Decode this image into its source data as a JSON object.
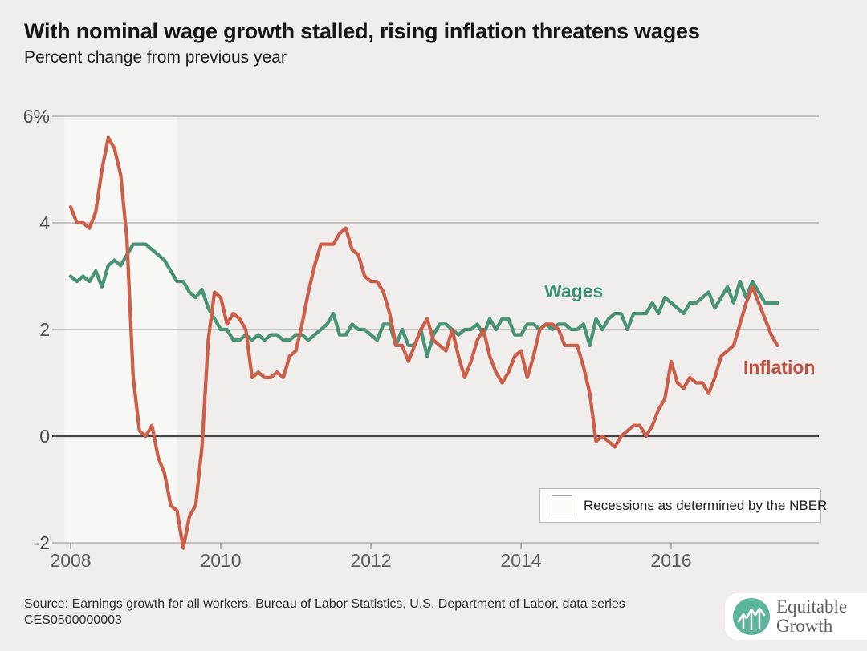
{
  "header": {
    "title": "With nominal wage growth stalled, rising inflation threatens wages",
    "subtitle": "Percent change from previous year"
  },
  "chart_data": {
    "type": "line",
    "x_unit": "month",
    "x_start": "2008-01",
    "x_end": "2017-06",
    "x_tick_years": [
      2008,
      2010,
      2012,
      2014,
      2016
    ],
    "y_ticks": [
      6,
      4,
      2,
      0,
      -2
    ],
    "y_tick_labels": [
      "6%",
      "4",
      "2",
      "0",
      "-2"
    ],
    "ylim": [
      -2.2,
      6.2
    ],
    "grid": "horizontal",
    "recession_band": {
      "start": "2007-12",
      "end": "2009-06",
      "color": "#f7f7f6"
    },
    "series": [
      {
        "name": "Wages",
        "color": "#4a9475",
        "values": [
          3.0,
          2.9,
          3.0,
          2.9,
          3.1,
          2.8,
          3.2,
          3.3,
          3.2,
          3.4,
          3.6,
          3.6,
          3.6,
          3.5,
          3.4,
          3.3,
          3.1,
          2.9,
          2.9,
          2.7,
          2.6,
          2.75,
          2.4,
          2.2,
          2.0,
          2.0,
          1.8,
          1.8,
          1.9,
          1.8,
          1.9,
          1.8,
          1.9,
          1.9,
          1.8,
          1.8,
          1.9,
          1.9,
          1.8,
          1.9,
          2.0,
          2.1,
          2.3,
          1.9,
          1.9,
          2.1,
          2.0,
          2.0,
          1.9,
          1.8,
          2.1,
          2.1,
          1.7,
          2.0,
          1.7,
          1.7,
          2.0,
          1.5,
          1.9,
          2.1,
          2.1,
          2.0,
          1.9,
          2.0,
          2.0,
          2.1,
          1.9,
          2.2,
          2.0,
          2.2,
          2.2,
          1.9,
          1.9,
          2.1,
          2.1,
          2.0,
          2.1,
          2.0,
          2.1,
          2.1,
          2.0,
          2.0,
          2.1,
          1.7,
          2.2,
          2.0,
          2.2,
          2.3,
          2.3,
          2.0,
          2.3,
          2.3,
          2.3,
          2.5,
          2.3,
          2.6,
          2.5,
          2.4,
          2.3,
          2.5,
          2.5,
          2.6,
          2.7,
          2.4,
          2.6,
          2.8,
          2.5,
          2.9,
          2.6,
          2.9,
          2.7,
          2.5,
          2.5,
          2.5
        ]
      },
      {
        "name": "Inflation",
        "color": "#cc5f4a",
        "values": [
          4.3,
          4.0,
          4.0,
          3.9,
          4.2,
          5.0,
          5.6,
          5.4,
          4.9,
          3.7,
          1.1,
          0.1,
          0.0,
          0.2,
          -0.4,
          -0.7,
          -1.3,
          -1.4,
          -2.1,
          -1.5,
          -1.3,
          -0.2,
          1.8,
          2.7,
          2.6,
          2.1,
          2.3,
          2.2,
          2.0,
          1.1,
          1.2,
          1.1,
          1.1,
          1.2,
          1.1,
          1.5,
          1.6,
          2.1,
          2.7,
          3.2,
          3.6,
          3.6,
          3.6,
          3.8,
          3.9,
          3.5,
          3.4,
          3.0,
          2.9,
          2.9,
          2.7,
          2.3,
          1.7,
          1.7,
          1.4,
          1.7,
          2.0,
          2.2,
          1.8,
          1.7,
          1.6,
          2.0,
          1.5,
          1.1,
          1.4,
          1.8,
          2.0,
          1.5,
          1.2,
          1.0,
          1.2,
          1.5,
          1.6,
          1.1,
          1.5,
          2.0,
          2.1,
          2.1,
          2.0,
          1.7,
          1.7,
          1.7,
          1.3,
          0.8,
          -0.1,
          0.0,
          -0.1,
          -0.2,
          0.0,
          0.1,
          0.2,
          0.2,
          0.0,
          0.2,
          0.5,
          0.7,
          1.4,
          1.0,
          0.9,
          1.1,
          1.0,
          1.0,
          0.8,
          1.1,
          1.5,
          1.6,
          1.7,
          2.1,
          2.5,
          2.8,
          2.5,
          2.2,
          1.9,
          1.7
        ]
      }
    ]
  },
  "legend": {
    "swatch_label": "Recessions as determined by the NBER"
  },
  "footer": {
    "source_line1": "Source: Earnings growth for all workers. Bureau of Labor Statistics, U.S. Department of Labor, data series",
    "source_line2": "CES0500000003",
    "logo": {
      "line1": "Equitable",
      "line2": "Growth"
    }
  }
}
